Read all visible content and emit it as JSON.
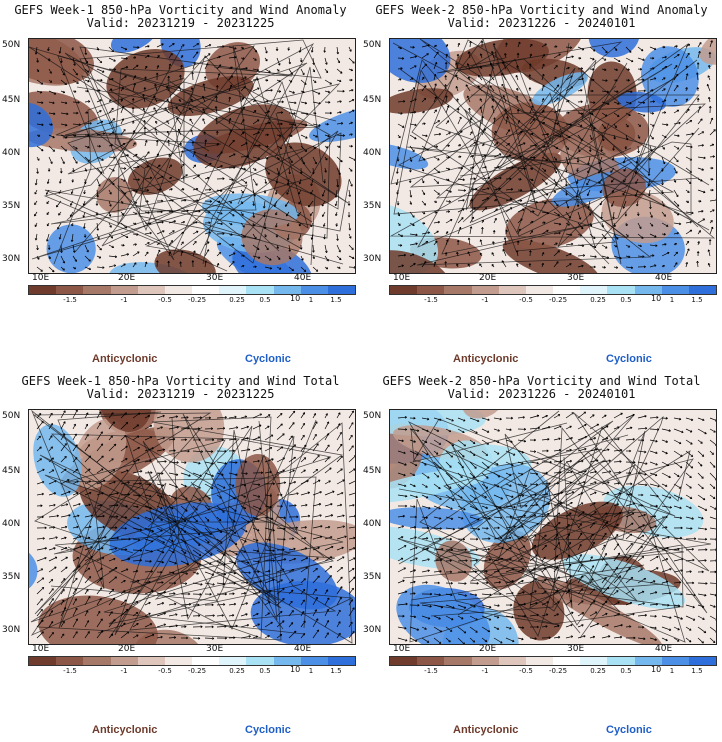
{
  "panels": [
    {
      "title_line1": "GEFS Week-1 850-hPa Vorticity and Wind Anomaly",
      "title_line2": "Valid: 20231219 - 20231225",
      "variant": "anomaly",
      "seed": 3
    },
    {
      "title_line1": "GEFS Week-2 850-hPa Vorticity and Wind Anomaly",
      "title_line2": "Valid: 20231226 - 20240101",
      "variant": "anomaly",
      "seed": 7
    },
    {
      "title_line1": "GEFS Week-1 850-hPa Vorticity and Wind Total",
      "title_line2": "Valid: 20231219 - 20231225",
      "variant": "total",
      "seed": 11
    },
    {
      "title_line1": "GEFS Week-2 850-hPa Vorticity and Wind Total",
      "title_line2": "Valid: 20231226 - 20240101",
      "variant": "total",
      "seed": 19
    }
  ],
  "axes": {
    "lat_labels": [
      "50N",
      "45N",
      "40N",
      "35N",
      "30N"
    ],
    "lon_labels": [
      "10E",
      "20E",
      "30E",
      "40E"
    ]
  },
  "colorbar": {
    "colors": [
      "#6e3b2c",
      "#8c5747",
      "#a67868",
      "#c29c8e",
      "#dfc6bd",
      "#f3e9e4",
      "#ffffff",
      "#dff4fb",
      "#a9e2f5",
      "#74b8ee",
      "#4b8fe6",
      "#2e6fdb"
    ],
    "tick_labels": [
      "-1.5",
      "-1",
      "-0.5",
      "-0.25",
      "0.25",
      "0.5",
      "1",
      "1.5"
    ],
    "multiplier": "10"
  },
  "legend": {
    "anticyclonic": "Anticyclonic",
    "cyclonic": "Cyclonic"
  }
}
